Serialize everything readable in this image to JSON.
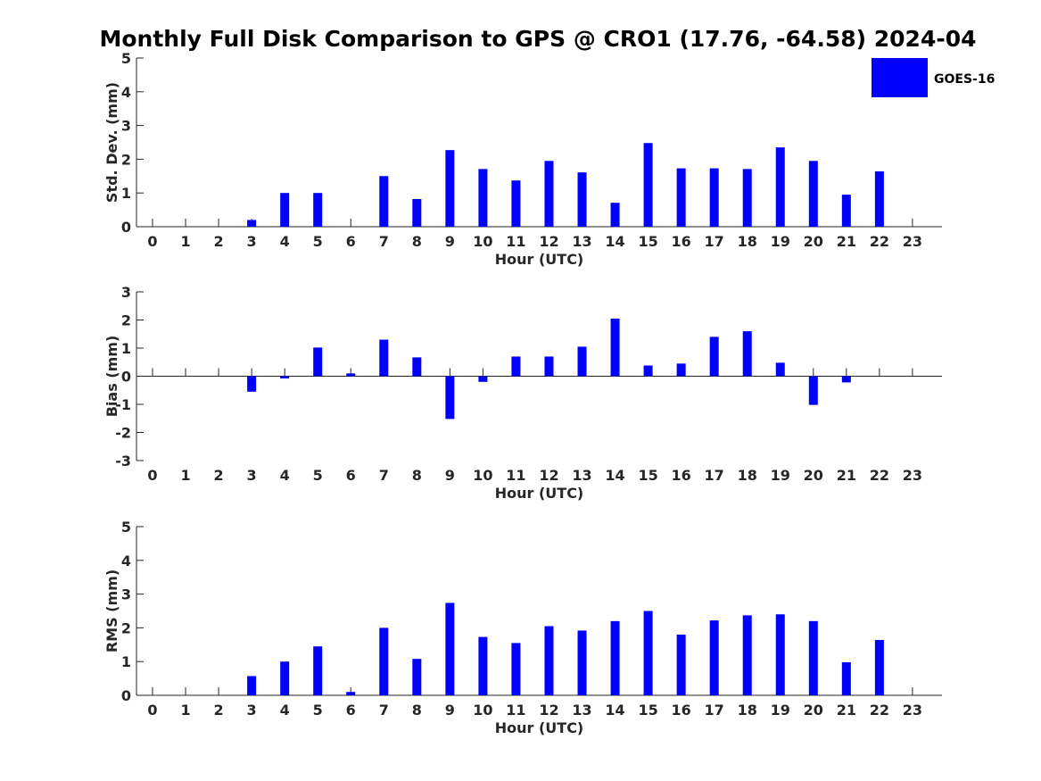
{
  "title": "Monthly Full Disk Comparison to GPS @ CRO1 (17.76, -64.58) 2024-04",
  "legend": {
    "label": "GOES-16",
    "color": "#0000ff",
    "placement": "top-right"
  },
  "bar_color": "#0000ff",
  "chart_data": [
    {
      "type": "bar",
      "ylabel": "Std. Dev. (mm)",
      "xlabel": "Hour (UTC)",
      "ylim": [
        0,
        5
      ],
      "yticks": [
        "0",
        "1",
        "2",
        "3",
        "4",
        "5"
      ],
      "categories": [
        "0",
        "1",
        "2",
        "3",
        "4",
        "5",
        "6",
        "7",
        "8",
        "9",
        "10",
        "11",
        "12",
        "13",
        "14",
        "15",
        "16",
        "17",
        "18",
        "19",
        "20",
        "21",
        "22",
        "23"
      ],
      "series": [
        {
          "name": "GOES-16",
          "values": [
            null,
            null,
            null,
            0.2,
            1.0,
            1.0,
            null,
            1.5,
            0.82,
            2.27,
            1.71,
            1.37,
            1.95,
            1.61,
            0.71,
            2.48,
            1.73,
            1.73,
            1.71,
            2.35,
            1.95,
            0.95,
            1.64,
            null
          ]
        }
      ]
    },
    {
      "type": "bar",
      "ylabel": "Bias (mm)",
      "xlabel": "Hour (UTC)",
      "ylim": [
        -3,
        3
      ],
      "yticks": [
        "-3",
        "-2",
        "-1",
        "0",
        "1",
        "2",
        "3"
      ],
      "categories": [
        "0",
        "1",
        "2",
        "3",
        "4",
        "5",
        "6",
        "7",
        "8",
        "9",
        "10",
        "11",
        "12",
        "13",
        "14",
        "15",
        "16",
        "17",
        "18",
        "19",
        "20",
        "21",
        "22",
        "23"
      ],
      "series": [
        {
          "name": "GOES-16",
          "values": [
            null,
            null,
            null,
            -0.55,
            -0.08,
            1.02,
            0.1,
            1.3,
            0.67,
            -1.52,
            -0.2,
            0.7,
            0.7,
            1.05,
            2.05,
            0.38,
            0.45,
            1.4,
            1.6,
            0.48,
            -1.02,
            -0.22,
            0.0,
            null
          ]
        }
      ]
    },
    {
      "type": "bar",
      "ylabel": "RMS (mm)",
      "xlabel": "Hour (UTC)",
      "ylim": [
        0,
        5
      ],
      "yticks": [
        "0",
        "1",
        "2",
        "3",
        "4",
        "5"
      ],
      "categories": [
        "0",
        "1",
        "2",
        "3",
        "4",
        "5",
        "6",
        "7",
        "8",
        "9",
        "10",
        "11",
        "12",
        "13",
        "14",
        "15",
        "16",
        "17",
        "18",
        "19",
        "20",
        "21",
        "22",
        "23"
      ],
      "series": [
        {
          "name": "GOES-16",
          "values": [
            null,
            null,
            null,
            0.57,
            1.0,
            1.45,
            0.1,
            2.0,
            1.08,
            2.74,
            1.73,
            1.55,
            2.05,
            1.92,
            2.2,
            2.5,
            1.8,
            2.22,
            2.37,
            2.4,
            2.2,
            0.98,
            1.64,
            null
          ]
        }
      ]
    }
  ]
}
